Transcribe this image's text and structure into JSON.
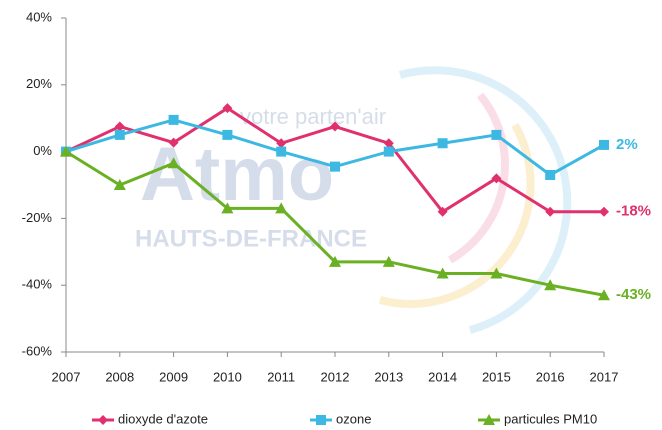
{
  "chart_data": {
    "type": "line",
    "categories": [
      "2007",
      "2008",
      "2009",
      "2010",
      "2011",
      "2012",
      "2013",
      "2014",
      "2015",
      "2016",
      "2017"
    ],
    "ylim": [
      -60,
      40
    ],
    "yticks": [
      {
        "value": -60,
        "label": "-60%"
      },
      {
        "value": -40,
        "label": "-40%"
      },
      {
        "value": -20,
        "label": "-20%"
      },
      {
        "value": 0,
        "label": "0%"
      },
      {
        "value": 20,
        "label": "20%"
      },
      {
        "value": 40,
        "label": "40%"
      }
    ],
    "grid": false,
    "legend": "bottom",
    "series": [
      {
        "name": "dioxyde d'azote",
        "color": "#e0306e",
        "marker": "diamond",
        "values": [
          0,
          7.5,
          2.7,
          13,
          2.5,
          7.5,
          2.5,
          -18,
          -8,
          -18,
          -18
        ],
        "end_label": "-18%"
      },
      {
        "name": "ozone",
        "color": "#3cb8e2",
        "marker": "square",
        "values": [
          0,
          5,
          9.5,
          5,
          0,
          -4.5,
          0,
          2.5,
          5,
          -7,
          2
        ],
        "end_label": "2%"
      },
      {
        "name": "particules PM10",
        "color": "#6ab023",
        "marker": "triangle",
        "values": [
          0,
          -10,
          -3.5,
          -17,
          -17,
          -33,
          -33,
          -36.5,
          -36.5,
          -40,
          -43
        ],
        "end_label": "-43%"
      }
    ],
    "watermark": {
      "tagline": "votre parten'air",
      "name": "Atmo",
      "region": "HAUTS-DE-FRANCE"
    }
  }
}
